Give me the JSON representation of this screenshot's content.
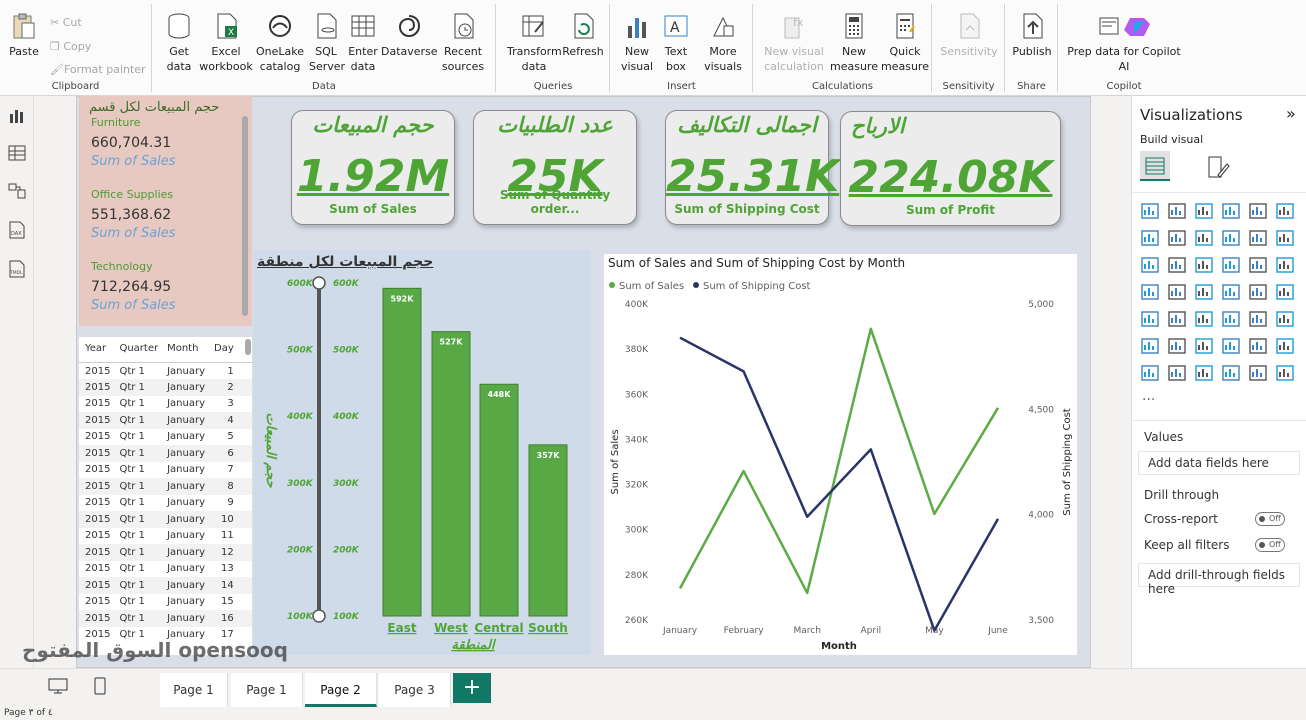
{
  "ribbon": {
    "groups": {
      "clipboard": "Clipboard",
      "data": "Data",
      "queries": "Queries",
      "insert": "Insert",
      "calculations": "Calculations",
      "sensitivity": "Sensitivity",
      "share": "Share",
      "copilot": "Copilot"
    },
    "paste": "Paste",
    "cut": "Cut",
    "copy": "Copy",
    "format_painter": "Format painter",
    "get_data": "Get data",
    "excel": "Excel workbook",
    "onelake": "OneLake catalog",
    "sql": "SQL Server",
    "enter_data": "Enter data",
    "dataverse": "Dataverse",
    "recent": "Recent sources",
    "transform": "Transform data",
    "refresh": "Refresh",
    "new_visual": "New visual",
    "text_box": "Text box",
    "more_visuals": "More visuals",
    "new_visual_calc": "New visual calculation",
    "new_measure": "New measure",
    "quick_measure": "Quick measure",
    "sensitivity": "Sensitivity",
    "publish": "Publish",
    "copilot": "Prep data for Copilot AI"
  },
  "categories": {
    "title": "حجم المبيعات لكل قسم",
    "items": [
      {
        "name": "Furniture",
        "value": "660,704.31",
        "label": "Sum of Sales"
      },
      {
        "name": "Office Supplies",
        "value": "551,368.62",
        "label": "Sum of Sales"
      },
      {
        "name": "Technology",
        "value": "712,264.95",
        "label": "Sum of Sales"
      }
    ]
  },
  "table": {
    "headers": [
      "Year",
      "Quarter",
      "Month",
      "Day"
    ],
    "rows": [
      [
        "2015",
        "Qtr 1",
        "January",
        "1"
      ],
      [
        "2015",
        "Qtr 1",
        "January",
        "2"
      ],
      [
        "2015",
        "Qtr 1",
        "January",
        "3"
      ],
      [
        "2015",
        "Qtr 1",
        "January",
        "4"
      ],
      [
        "2015",
        "Qtr 1",
        "January",
        "5"
      ],
      [
        "2015",
        "Qtr 1",
        "January",
        "6"
      ],
      [
        "2015",
        "Qtr 1",
        "January",
        "7"
      ],
      [
        "2015",
        "Qtr 1",
        "January",
        "8"
      ],
      [
        "2015",
        "Qtr 1",
        "January",
        "9"
      ],
      [
        "2015",
        "Qtr 1",
        "January",
        "10"
      ],
      [
        "2015",
        "Qtr 1",
        "January",
        "11"
      ],
      [
        "2015",
        "Qtr 1",
        "January",
        "12"
      ],
      [
        "2015",
        "Qtr 1",
        "January",
        "13"
      ],
      [
        "2015",
        "Qtr 1",
        "January",
        "14"
      ],
      [
        "2015",
        "Qtr 1",
        "January",
        "15"
      ],
      [
        "2015",
        "Qtr 1",
        "January",
        "16"
      ],
      [
        "2015",
        "Qtr 1",
        "January",
        "17"
      ]
    ]
  },
  "cards": [
    {
      "title": "حجم المبيعات",
      "value": "1.92M",
      "label": "Sum of Sales"
    },
    {
      "title": "عدد الطلبيات",
      "value": "25K",
      "label": "Sum of Quantity order..."
    },
    {
      "title": "اجمالى التكاليف",
      "value": "25.31K",
      "label": "Sum of Shipping Cost"
    },
    {
      "title": "الارباح",
      "value": "224.08K",
      "label": "Sum of Profit"
    }
  ],
  "chart_data": [
    {
      "type": "bar",
      "title": "حجم المبيعات لكل منطقة",
      "xlabel": "المنطقة",
      "ylabel": "حجم المبيعات",
      "categories": [
        "East",
        "West",
        "Central",
        "South"
      ],
      "values": [
        592,
        527,
        448,
        357
      ],
      "data_labels": [
        "592K",
        "527K",
        "448K",
        "357K"
      ],
      "y_ticks": [
        "100K",
        "200K",
        "300K",
        "400K",
        "500K",
        "600K"
      ],
      "ylim": [
        100,
        600
      ],
      "colors": {
        "bar": "#58a846",
        "background": "#d0dbe9"
      }
    },
    {
      "type": "line",
      "title": "Sum of Sales and Sum of Shipping Cost by Month",
      "xlabel": "Month",
      "ylabel": "Sum of Sales",
      "y2label": "Sum of Shipping Cost",
      "categories": [
        "January",
        "February",
        "March",
        "April",
        "May",
        "June"
      ],
      "series": [
        {
          "name": "Sum of Sales",
          "axis": "left",
          "color": "#5bab47",
          "values": [
            274000,
            326000,
            272000,
            389000,
            307000,
            354000
          ]
        },
        {
          "name": "Sum of Shipping Cost",
          "axis": "right",
          "color": "#2b3466",
          "values": [
            4840,
            4680,
            3990,
            4310,
            3450,
            3980
          ]
        }
      ],
      "y_ticks": [
        "260K",
        "280K",
        "300K",
        "320K",
        "340K",
        "360K",
        "380K",
        "400K"
      ],
      "ylim": [
        260000,
        400000
      ],
      "y2_ticks": [
        "3,500",
        "4,000",
        "4,500",
        "5,000"
      ],
      "y2lim": [
        3500,
        5000
      ],
      "legend": "top-left"
    }
  ],
  "viz": {
    "title": "Visualizations",
    "build": "Build visual",
    "values": "Values",
    "add_fields": "Add data fields here",
    "drill": "Drill through",
    "cross": "Cross-report",
    "keep": "Keep all filters",
    "off": "Off",
    "add_drill": "Add drill-through fields here",
    "more": "..."
  },
  "pages": [
    "Page 1",
    "Page 1",
    "Page 2",
    "Page 3"
  ],
  "add_page": "+",
  "status": "Page ٣ of ٤",
  "watermark": "السوق المفتوح opensooq"
}
